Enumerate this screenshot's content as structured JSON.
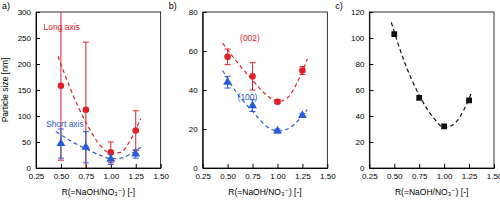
{
  "chart_data": [
    {
      "type": "scatter",
      "title": "a)",
      "x_label": "R(=NaOH/NO₃⁻) [-]",
      "y_label": "Particle size [nm]",
      "xlim": [
        0.25,
        1.5
      ],
      "xticks": [
        0.25,
        {
          "value": 0.5,
          "label": "0.50"
        },
        0.75,
        {
          "value": 1.0,
          "label": "1.00"
        },
        1.25,
        {
          "value": 1.5,
          "label": "1.50"
        }
      ],
      "ylim": [
        0,
        300
      ],
      "yticks": [
        0,
        50,
        100,
        150,
        200,
        250,
        300
      ],
      "series": [
        {
          "name": "Long axis",
          "type": "scatter",
          "color": "#e0202a",
          "marker": "circle",
          "x": [
            0.5,
            0.75,
            1.0,
            1.25
          ],
          "values": [
            158,
            112,
            30,
            72
          ],
          "errors": [
            143,
            130,
            20,
            38
          ]
        },
        {
          "name": "Short axis",
          "type": "scatter",
          "color": "#2a5bd7",
          "marker": "triangle",
          "x": [
            0.5,
            0.75,
            1.0,
            1.25
          ],
          "values": [
            47,
            40,
            17,
            27
          ],
          "errors": [
            28,
            30,
            10,
            8
          ]
        },
        {
          "type": "line",
          "color": "#e0202a",
          "line_style": "dashed",
          "marker": "none",
          "x": [
            0.47,
            0.6,
            0.75,
            0.9,
            1.0,
            1.1,
            1.2,
            1.3
          ],
          "values": [
            215,
            150,
            88,
            42,
            28,
            30,
            55,
            95
          ]
        },
        {
          "type": "line",
          "color": "#2a5bd7",
          "line_style": "dashed",
          "marker": "none",
          "x": [
            0.45,
            0.6,
            0.75,
            0.9,
            1.0,
            1.1,
            1.2,
            1.3
          ],
          "values": [
            70,
            52,
            37,
            24,
            18,
            19,
            27,
            40
          ]
        }
      ]
    },
    {
      "type": "scatter",
      "title": "b)",
      "x_label": "R(=NaOH/NO₃⁻) [-]",
      "xlim": [
        0.25,
        1.5
      ],
      "xticks": [
        0.25,
        {
          "value": 0.5,
          "label": "0.50"
        },
        0.75,
        {
          "value": 1.0,
          "label": "1.00"
        },
        1.25,
        {
          "value": 1.5,
          "label": "1.50"
        }
      ],
      "ylim": [
        0,
        80
      ],
      "yticks": [
        0,
        20,
        40,
        60,
        80
      ],
      "series": [
        {
          "name": "(002)",
          "type": "scatter",
          "color": "#e0202a",
          "marker": "circle",
          "x": [
            0.5,
            0.75,
            1.0,
            1.25
          ],
          "values": [
            57,
            47,
            34,
            50
          ],
          "errors": [
            4,
            7,
            1,
            2
          ]
        },
        {
          "name": "(100)",
          "type": "scatter",
          "color": "#2a5bd7",
          "marker": "triangle",
          "x": [
            0.5,
            0.75,
            1.0,
            1.25
          ],
          "values": [
            44,
            32,
            19,
            27
          ],
          "errors": [
            3,
            3,
            1,
            1
          ]
        },
        {
          "type": "line",
          "color": "#e0202a",
          "line_style": "dashed",
          "marker": "none",
          "x": [
            0.45,
            0.6,
            0.75,
            0.9,
            1.0,
            1.1,
            1.2,
            1.3
          ],
          "values": [
            64,
            54,
            45,
            37,
            34,
            36,
            44,
            56
          ]
        },
        {
          "type": "line",
          "color": "#2a5bd7",
          "line_style": "dashed",
          "marker": "none",
          "x": [
            0.45,
            0.6,
            0.75,
            0.9,
            1.0,
            1.1,
            1.2,
            1.3
          ],
          "values": [
            50,
            38,
            29,
            21,
            19,
            20,
            24,
            30
          ]
        }
      ]
    },
    {
      "type": "scatter",
      "title": "c)",
      "x_label": "R(=NaOH/NO₃⁻) [-]",
      "xlim": [
        0.25,
        1.5
      ],
      "xticks": [
        0.25,
        {
          "value": 0.5,
          "label": "0.50"
        },
        0.75,
        {
          "value": 1.0,
          "label": "1.00"
        },
        1.25,
        {
          "value": 1.5,
          "label": "1.50"
        }
      ],
      "ylim": [
        0,
        120
      ],
      "yticks": [
        0,
        20,
        40,
        60,
        80,
        100,
        120
      ],
      "series": [
        {
          "type": "scatter",
          "color": "#111111",
          "marker": "square",
          "x": [
            0.5,
            0.75,
            1.0,
            1.25
          ],
          "values": [
            103,
            54,
            32,
            52
          ]
        },
        {
          "type": "line",
          "color": "#111111",
          "line_style": "dashed",
          "marker": "none",
          "x": [
            0.47,
            0.6,
            0.75,
            0.9,
            1.0,
            1.1,
            1.2,
            1.27
          ],
          "values": [
            112,
            82,
            56,
            38,
            31,
            34,
            45,
            57
          ]
        }
      ]
    }
  ]
}
